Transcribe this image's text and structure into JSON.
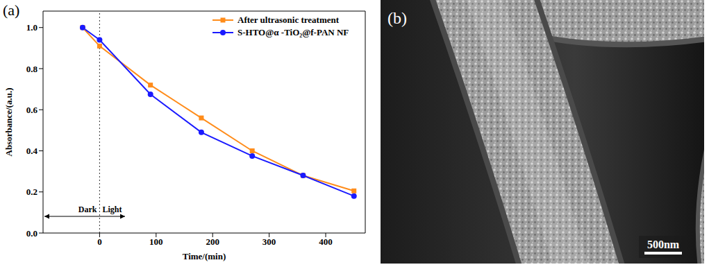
{
  "chart_data": {
    "type": "line",
    "panel": "(a)",
    "x_label": "Time/(min)",
    "y_label": "Absorbance/(a.u.)",
    "x": [
      -30,
      0,
      90,
      180,
      270,
      360,
      450
    ],
    "series": [
      {
        "name": "After ultrasonic treatment",
        "color": "#ff8c1a",
        "marker": "square",
        "values": [
          1.0,
          0.91,
          0.72,
          0.56,
          0.4,
          0.28,
          0.205
        ]
      },
      {
        "name": "S-HTO@α -TiO₂@f-PAN NF",
        "color": "#1a1aff",
        "marker": "circle",
        "values": [
          1.0,
          0.94,
          0.675,
          0.49,
          0.375,
          0.28,
          0.18
        ]
      }
    ],
    "xlim": [
      -100,
      470
    ],
    "xticks": [
      0,
      100,
      200,
      300,
      400
    ],
    "ylim": [
      0,
      1.08
    ],
    "yticks": [
      {
        "value": 0,
        "label": "0.0"
      },
      {
        "value": 0.2,
        "label": "0.2"
      },
      {
        "value": 0.4,
        "label": "0.4"
      },
      {
        "value": 0.6,
        "label": "0.6"
      },
      {
        "value": 0.8,
        "label": "0.8"
      },
      {
        "value": 1.0,
        "label": "1.0"
      }
    ],
    "legend": "upper right",
    "annotations": [
      {
        "x": 0,
        "left": "Dark",
        "right": "Light",
        "line_style": "dotted"
      }
    ]
  },
  "image_panel": {
    "type": "image",
    "label": "(b)",
    "scale_bar": "500nm"
  }
}
